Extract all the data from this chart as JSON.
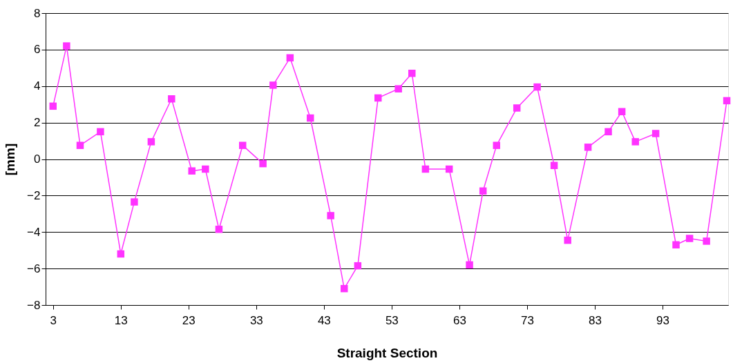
{
  "chart_data": {
    "type": "line",
    "xlabel": "Straight Section",
    "ylabel": "[mm]",
    "x": [
      3,
      5,
      7,
      10,
      13,
      15,
      17.5,
      20.5,
      23.5,
      25.5,
      27.5,
      31,
      34,
      35.5,
      38,
      41,
      44,
      46,
      48,
      51,
      54,
      56,
      58,
      61.5,
      64.5,
      66.5,
      68.5,
      71.5,
      74.5,
      77,
      79,
      82,
      85,
      87,
      89,
      92,
      95,
      97,
      99.5,
      102.5
    ],
    "series": [
      {
        "color": "#ff33ff",
        "values": [
          2.9,
          6.2,
          0.75,
          1.5,
          -5.2,
          -2.35,
          0.95,
          3.3,
          -0.65,
          -0.55,
          -3.85,
          0.75,
          -0.25,
          4.05,
          5.55,
          2.25,
          -3.1,
          -7.1,
          -5.85,
          3.35,
          3.85,
          4.7,
          -0.55,
          -0.55,
          -5.8,
          -1.75,
          0.75,
          2.8,
          3.95,
          -0.35,
          -4.45,
          0.65,
          1.5,
          2.6,
          0.95,
          1.4,
          -4.7,
          -4.35,
          -4.5,
          3.2
        ]
      }
    ],
    "xlim": [
      1.9,
      102.7
    ],
    "xticks": [
      3,
      13,
      23,
      33,
      43,
      53,
      63,
      73,
      83,
      93
    ],
    "ylim": [
      -8,
      8
    ],
    "yticks": [
      -8,
      -6,
      -4,
      -2,
      0,
      2,
      4,
      6,
      8
    ],
    "grid": "y",
    "marker": "square",
    "line_style": "solid"
  }
}
